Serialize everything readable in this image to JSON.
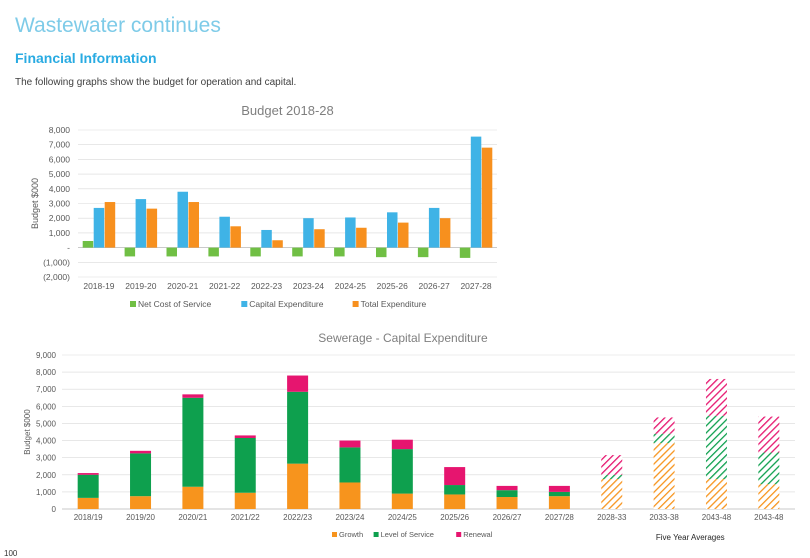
{
  "page": {
    "heading": "Wastewater continues",
    "section_heading": "Financial Information",
    "intro": "The following graphs show the budget for operation and capital.",
    "page_number": "100"
  },
  "colors": {
    "net_cost": "#70bf44",
    "capital": "#3fb3e6",
    "total": "#f7901e",
    "growth": "#f7941d",
    "level_of_service": "#0ea04e",
    "renewal": "#e6156f",
    "axis_text": "#595959",
    "gridline": "#d9d9d9"
  },
  "chart_data": [
    {
      "type": "bar",
      "title": "Budget 2018-28",
      "ylabel": "Budget $000",
      "xlabel": "",
      "ylim": [
        -2000,
        8000
      ],
      "y_ticks": [
        8000,
        7000,
        6000,
        5000,
        4000,
        3000,
        2000,
        1000,
        0,
        -1000,
        -2000
      ],
      "y_tick_labels": [
        "8,000",
        "7,000",
        "6,000",
        "5,000",
        "4,000",
        "3,000",
        "2,000",
        "1,000",
        "-",
        "(1,000)",
        "(2,000)"
      ],
      "grid": true,
      "legend_position": "bottom",
      "categories": [
        "2018-19",
        "2019-20",
        "2020-21",
        "2021-22",
        "2022-23",
        "2023-24",
        "2024-25",
        "2025-26",
        "2026-27",
        "2027-28"
      ],
      "series": [
        {
          "name": "Net Cost of Service",
          "color": "#70bf44",
          "values": [
            450,
            -600,
            -600,
            -600,
            -600,
            -600,
            -600,
            -650,
            -650,
            -700
          ]
        },
        {
          "name": "Capital Expenditure",
          "color": "#3fb3e6",
          "values": [
            2700,
            3300,
            3800,
            2100,
            1200,
            2000,
            2050,
            2400,
            2700,
            7550
          ]
        },
        {
          "name": "Total Expenditure",
          "color": "#f7901e",
          "values": [
            3100,
            2650,
            3100,
            1450,
            500,
            1250,
            1350,
            1700,
            2000,
            6800
          ]
        }
      ]
    },
    {
      "type": "bar",
      "stacked": true,
      "title": "Sewerage - Capital Expenditure",
      "ylabel": "Budget $000",
      "xlabel": "",
      "ylim": [
        0,
        9000
      ],
      "y_ticks": [
        9000,
        8000,
        7000,
        6000,
        5000,
        4000,
        3000,
        2000,
        1000,
        0
      ],
      "y_tick_labels": [
        "9,000",
        "8,000",
        "7,000",
        "6,000",
        "5,000",
        "4,000",
        "3,000",
        "2,000",
        "1,000",
        "0"
      ],
      "grid": true,
      "legend_position": "bottom",
      "categories": [
        "2018/19",
        "2019/20",
        "2020/21",
        "2021/22",
        "2022/23",
        "2023/24",
        "2024/25",
        "2025/26",
        "2026/27",
        "2027/28",
        "2028-33",
        "2033-38",
        "2043-48",
        "2043-48"
      ],
      "hatched_from_index": 10,
      "group_label": "Five Year Averages",
      "series": [
        {
          "name": "Growth",
          "color": "#f7941d",
          "values": [
            650,
            750,
            1300,
            950,
            2650,
            1550,
            900,
            850,
            700,
            750,
            1750,
            3850,
            1750,
            1450
          ]
        },
        {
          "name": "Level of Service",
          "color": "#0ea04e",
          "values": [
            1350,
            2500,
            5200,
            3200,
            4200,
            2050,
            2600,
            550,
            400,
            250,
            250,
            550,
            3700,
            1850
          ]
        },
        {
          "name": "Renewal",
          "color": "#e6156f",
          "values": [
            100,
            150,
            200,
            150,
            950,
            400,
            550,
            1050,
            250,
            350,
            1150,
            950,
            2150,
            2100
          ]
        }
      ]
    }
  ]
}
